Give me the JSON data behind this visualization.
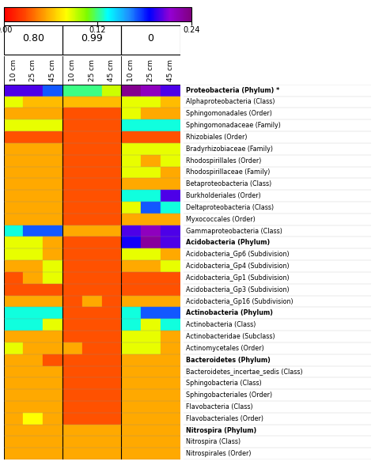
{
  "row_labels": [
    "Proteobacteria (Phylum) *",
    "Alphaproteobacteria (Class)",
    "Sphingomonadales (Order)",
    "Sphingomonadaceae (Family)",
    "Rhizobiales (Order)",
    "Bradyrhizobiaceae (Family)",
    "Rhodospirillales (Order)",
    "Rhodospirillaceae (Family)",
    "Betaproteobacteria (Class)",
    "Burkholderiales (Order)",
    "Deltaproteobacteria (Class)",
    "Myxococcales (Order)",
    "Gammaproteobacteria (Class)",
    "Acidobacteria (Phylum)",
    "Acidobacteria_Gp6 (Subdivision)",
    "Acidobacteria_Gp4 (Subdivision)",
    "Acidobacteria_Gp1 (Subdivision)",
    "Acidobacteria_Gp3 (Subdivision)",
    "Acidobacteria_Gp16 (Subdivision)",
    "Actinobacteria (Phylum)",
    "Actinobacteria (Class)",
    "Actinobacteridae (Subclass)",
    "Actinomycetales (Order)",
    "Bacteroidetes (Phylum)",
    "Bacteroidetes_incertae_sedis (Class)",
    "Sphingobacteria (Class)",
    "Sphingobacteriales (Order)",
    "Flavobacteria (Class)",
    "Flavobacteriales (Order)",
    "Nitrospira (Phylum)",
    "Nitrospira (Class)",
    "Nitrospirales (Order)"
  ],
  "col_labels": [
    "10 cm",
    "25 cm",
    "45 cm",
    "10 cm",
    "25 cm",
    "45 cm",
    "10 cm",
    "25 cm",
    "45 cm"
  ],
  "group_labels": [
    "0.80",
    "0.99",
    "0"
  ],
  "bold_rows": [
    0,
    13,
    19,
    23,
    29
  ],
  "heatmap_data": [
    [
      0.2,
      0.2,
      0.17,
      0.12,
      0.12,
      0.09,
      0.235,
      0.22,
      0.2
    ],
    [
      0.085,
      0.06,
      0.06,
      0.06,
      0.06,
      0.06,
      0.085,
      0.085,
      0.06
    ],
    [
      0.055,
      0.055,
      0.055,
      0.03,
      0.03,
      0.03,
      0.085,
      0.055,
      0.055
    ],
    [
      0.085,
      0.085,
      0.085,
      0.03,
      0.03,
      0.03,
      0.13,
      0.13,
      0.13
    ],
    [
      0.03,
      0.03,
      0.03,
      0.03,
      0.03,
      0.03,
      0.03,
      0.03,
      0.03
    ],
    [
      0.055,
      0.055,
      0.055,
      0.03,
      0.03,
      0.03,
      0.085,
      0.085,
      0.085
    ],
    [
      0.055,
      0.055,
      0.055,
      0.03,
      0.03,
      0.03,
      0.085,
      0.055,
      0.085
    ],
    [
      0.055,
      0.055,
      0.055,
      0.03,
      0.03,
      0.03,
      0.085,
      0.085,
      0.055
    ],
    [
      0.055,
      0.055,
      0.055,
      0.03,
      0.03,
      0.03,
      0.055,
      0.055,
      0.055
    ],
    [
      0.055,
      0.055,
      0.055,
      0.03,
      0.03,
      0.03,
      0.13,
      0.13,
      0.2
    ],
    [
      0.055,
      0.055,
      0.055,
      0.03,
      0.03,
      0.03,
      0.085,
      0.17,
      0.13
    ],
    [
      0.055,
      0.055,
      0.055,
      0.03,
      0.03,
      0.03,
      0.055,
      0.055,
      0.055
    ],
    [
      0.13,
      0.17,
      0.17,
      0.055,
      0.055,
      0.055,
      0.2,
      0.22,
      0.2
    ],
    [
      0.085,
      0.085,
      0.055,
      0.03,
      0.03,
      0.03,
      0.19,
      0.23,
      0.2
    ],
    [
      0.085,
      0.085,
      0.055,
      0.03,
      0.03,
      0.03,
      0.085,
      0.085,
      0.055
    ],
    [
      0.055,
      0.055,
      0.085,
      0.03,
      0.03,
      0.03,
      0.055,
      0.055,
      0.085
    ],
    [
      0.03,
      0.055,
      0.085,
      0.03,
      0.03,
      0.03,
      0.03,
      0.03,
      0.03
    ],
    [
      0.03,
      0.03,
      0.03,
      0.03,
      0.03,
      0.03,
      0.03,
      0.03,
      0.03
    ],
    [
      0.055,
      0.055,
      0.055,
      0.03,
      0.055,
      0.03,
      0.055,
      0.055,
      0.055
    ],
    [
      0.13,
      0.13,
      0.13,
      0.03,
      0.03,
      0.03,
      0.13,
      0.17,
      0.17
    ],
    [
      0.13,
      0.13,
      0.085,
      0.03,
      0.03,
      0.03,
      0.13,
      0.085,
      0.13
    ],
    [
      0.055,
      0.055,
      0.055,
      0.03,
      0.03,
      0.03,
      0.085,
      0.085,
      0.055
    ],
    [
      0.085,
      0.055,
      0.055,
      0.055,
      0.03,
      0.03,
      0.085,
      0.085,
      0.055
    ],
    [
      0.055,
      0.055,
      0.03,
      0.03,
      0.03,
      0.03,
      0.055,
      0.055,
      0.055
    ],
    [
      0.055,
      0.055,
      0.055,
      0.03,
      0.03,
      0.03,
      0.055,
      0.055,
      0.055
    ],
    [
      0.055,
      0.055,
      0.055,
      0.03,
      0.03,
      0.03,
      0.055,
      0.055,
      0.055
    ],
    [
      0.055,
      0.055,
      0.055,
      0.03,
      0.03,
      0.03,
      0.055,
      0.055,
      0.055
    ],
    [
      0.055,
      0.055,
      0.055,
      0.03,
      0.03,
      0.03,
      0.055,
      0.055,
      0.055
    ],
    [
      0.055,
      0.08,
      0.055,
      0.03,
      0.03,
      0.03,
      0.055,
      0.055,
      0.055
    ],
    [
      0.055,
      0.055,
      0.055,
      0.055,
      0.055,
      0.055,
      0.055,
      0.055,
      0.055
    ],
    [
      0.055,
      0.055,
      0.055,
      0.055,
      0.055,
      0.055,
      0.055,
      0.055,
      0.055
    ],
    [
      0.055,
      0.055,
      0.055,
      0.055,
      0.055,
      0.055,
      0.055,
      0.055,
      0.055
    ]
  ],
  "vmin": 0.0,
  "vmax": 0.24,
  "cmap_colors": [
    "red",
    "orangered",
    "orange",
    "yellow",
    "lawngreen",
    "cyan",
    "dodgerblue",
    "blue",
    "darkviolet",
    "purple"
  ],
  "cb_ticks": [
    0.0,
    0.12,
    0.24
  ],
  "cb_ticklabels": [
    "0.00",
    "0.12",
    "0.24"
  ],
  "fig_width": 4.74,
  "fig_height": 5.93,
  "dpi": 100
}
